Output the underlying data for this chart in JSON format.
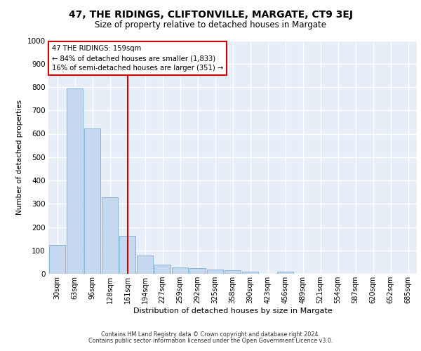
{
  "title": "47, THE RIDINGS, CLIFTONVILLE, MARGATE, CT9 3EJ",
  "subtitle": "Size of property relative to detached houses in Margate",
  "xlabel": "Distribution of detached houses by size in Margate",
  "ylabel": "Number of detached properties",
  "categories": [
    "30sqm",
    "63sqm",
    "96sqm",
    "128sqm",
    "161sqm",
    "194sqm",
    "227sqm",
    "259sqm",
    "292sqm",
    "325sqm",
    "358sqm",
    "390sqm",
    "423sqm",
    "456sqm",
    "489sqm",
    "521sqm",
    "554sqm",
    "587sqm",
    "620sqm",
    "652sqm",
    "685sqm"
  ],
  "values": [
    122,
    795,
    623,
    328,
    162,
    78,
    40,
    27,
    25,
    18,
    16,
    10,
    0,
    8,
    0,
    0,
    0,
    0,
    0,
    0,
    0
  ],
  "bar_color": "#c5d8f0",
  "bar_edge_color": "#7aadd4",
  "vline_x": 4,
  "vline_color": "#cc0000",
  "annotation_line1": "47 THE RIDINGS: 159sqm",
  "annotation_line2": "← 84% of detached houses are smaller (1,833)",
  "annotation_line3": "16% of semi-detached houses are larger (351) →",
  "annotation_box_color": "#ffffff",
  "annotation_box_edge": "#cc0000",
  "plot_bg_color": "#e8eef8",
  "grid_color": "#ffffff",
  "footer_line1": "Contains HM Land Registry data © Crown copyright and database right 2024.",
  "footer_line2": "Contains public sector information licensed under the Open Government Licence v3.0.",
  "ylim": [
    0,
    1000
  ],
  "yticks": [
    0,
    100,
    200,
    300,
    400,
    500,
    600,
    700,
    800,
    900,
    1000
  ]
}
